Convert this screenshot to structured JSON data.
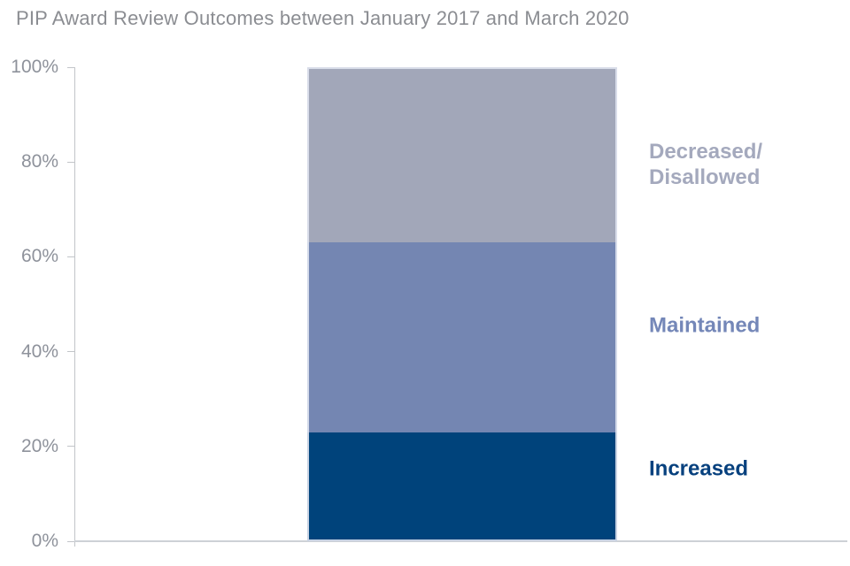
{
  "title": "PIP Award Review Outcomes between January 2017 and March 2020",
  "chart_data": {
    "type": "bar",
    "subtype": "stacked-100-percent",
    "title": "PIP Award Review Outcomes between January 2017 and March 2020",
    "orientation": "vertical",
    "bars": 1,
    "xlabel": "",
    "ylabel": "",
    "ylim": [
      0,
      100
    ],
    "yticks": [
      "0%",
      "20%",
      "40%",
      "60%",
      "80%",
      "100%"
    ],
    "grid": false,
    "legend_position": "right-of-bar",
    "series": [
      {
        "name": "Increased",
        "value": 23,
        "color": "#00437b",
        "label_color": "#07417e",
        "label_lines": [
          "Increased"
        ]
      },
      {
        "name": "Maintained",
        "value": 40,
        "color": "#7486b2",
        "label_color": "#7487b8",
        "label_lines": [
          "Maintained"
        ]
      },
      {
        "name": "Decreased/Disallowed",
        "value": 37,
        "color": "#a2a7b9",
        "label_color": "#a4a9bd",
        "label_lines": [
          "Decreased/",
          "Disallowed"
        ]
      }
    ],
    "colors": {
      "title_text": "#8b8d92",
      "axis_text": "#8e929b",
      "axis_line": "#c2c5c9"
    }
  }
}
